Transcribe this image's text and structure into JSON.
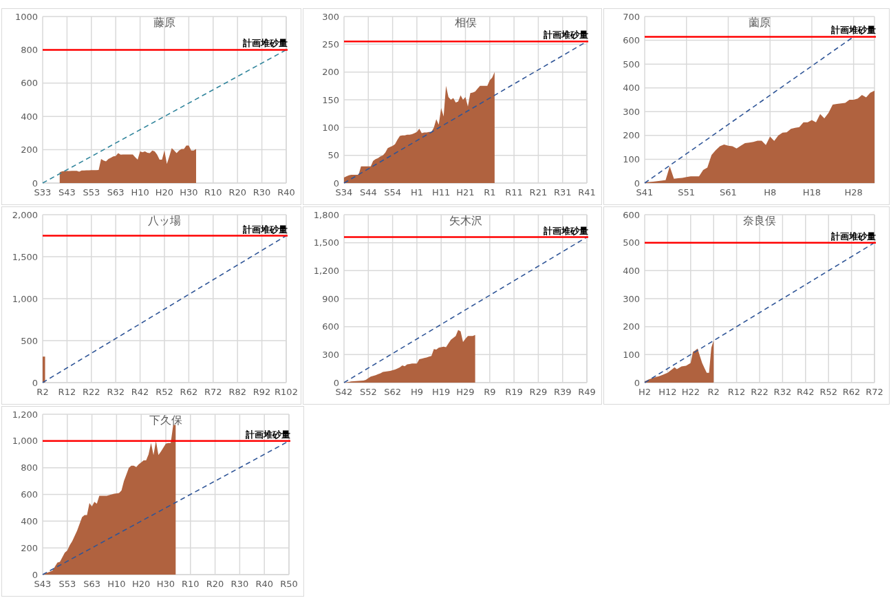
{
  "chart_data": [
    {
      "type": "area",
      "title": "藤原",
      "categories": [
        "S33",
        null,
        null,
        null,
        null,
        null,
        null,
        null,
        null,
        null,
        "S43",
        null,
        null,
        null,
        null,
        null,
        null,
        null,
        null,
        null,
        "S53",
        null,
        null,
        null,
        null,
        null,
        null,
        null,
        null,
        null,
        "S63",
        null,
        null,
        null,
        null,
        null,
        null,
        null,
        null,
        null,
        "H10",
        null,
        null,
        null,
        null,
        null,
        null,
        null,
        null,
        null,
        "H20",
        null,
        null,
        null,
        null,
        null,
        null,
        null,
        null,
        null,
        "H30",
        null,
        null,
        null,
        null,
        null,
        null,
        null,
        null,
        null,
        "R10",
        null,
        null,
        null,
        null,
        null,
        null,
        null,
        null,
        null,
        "R20",
        null,
        null,
        null,
        null,
        null,
        null,
        null,
        null,
        null,
        "R30",
        null,
        null,
        null,
        null,
        null,
        null,
        null,
        null,
        null,
        "R40"
      ],
      "ylim": [
        0,
        1000
      ],
      "yticks": [
        0,
        200,
        400,
        600,
        800,
        1000
      ],
      "grid": true,
      "ref_lines": [
        {
          "axis": "y",
          "value": 800,
          "label": "計画堆砂量",
          "color": "#ff0000"
        }
      ],
      "series": [
        {
          "color": "#b0623f",
          "values": [
            null,
            null,
            null,
            null,
            null,
            null,
            null,
            65,
            70,
            72,
            72,
            72,
            73,
            73,
            73,
            68,
            75,
            75,
            76,
            76,
            77,
            77,
            77,
            78,
            145,
            135,
            130,
            145,
            152,
            160,
            162,
            180,
            170,
            172,
            172,
            172,
            172,
            172,
            155,
            140,
            190,
            185,
            190,
            182,
            180,
            195,
            190,
            170,
            140,
            140,
            195,
            115,
            160,
            210,
            195,
            180,
            195,
            205,
            205,
            225,
            225,
            195,
            195,
            205,
            null,
            null,
            null,
            null,
            null,
            null,
            null,
            null,
            null,
            null,
            null,
            null,
            null,
            null,
            null,
            null,
            null,
            null,
            null,
            null,
            null,
            null,
            null,
            null,
            null,
            null,
            null,
            null,
            null,
            null,
            null,
            null,
            null,
            null,
            null,
            null,
            null
          ]
        },
        {
          "type": "line",
          "line_style": "dashed",
          "color": "#31859c",
          "x": [
            "S33",
            "R40"
          ],
          "values": [
            0,
            800
          ]
        }
      ]
    },
    {
      "type": "area",
      "title": "相俣",
      "categories": [
        "S34",
        null,
        null,
        null,
        null,
        null,
        null,
        null,
        null,
        null,
        "S44",
        null,
        null,
        null,
        null,
        null,
        null,
        null,
        null,
        null,
        "S54",
        null,
        null,
        null,
        null,
        null,
        null,
        null,
        null,
        null,
        "H1",
        null,
        null,
        null,
        null,
        null,
        null,
        null,
        null,
        null,
        "H11",
        null,
        null,
        null,
        null,
        null,
        null,
        null,
        null,
        null,
        "H21",
        null,
        null,
        null,
        null,
        null,
        null,
        null,
        null,
        null,
        "R1",
        null,
        null,
        null,
        null,
        null,
        null,
        null,
        null,
        null,
        "R11",
        null,
        null,
        null,
        null,
        null,
        null,
        null,
        null,
        null,
        "R21",
        null,
        null,
        null,
        null,
        null,
        null,
        null,
        null,
        null,
        "R31",
        null,
        null,
        null,
        null,
        null,
        null,
        null,
        null,
        null,
        "R41"
      ],
      "ylim": [
        0,
        300
      ],
      "yticks": [
        0,
        50,
        100,
        150,
        200,
        250,
        300
      ],
      "grid": true,
      "ref_lines": [
        {
          "axis": "y",
          "value": 255,
          "label": "計画堆砂量",
          "color": "#ff0000"
        }
      ],
      "series": [
        {
          "color": "#b0623f",
          "values": [
            10,
            12,
            14,
            15,
            15,
            15,
            15,
            30,
            30,
            30,
            30,
            30,
            40,
            43,
            45,
            48,
            50,
            55,
            63,
            65,
            67,
            70,
            78,
            85,
            86,
            86,
            87,
            87,
            88,
            90,
            92,
            98,
            90,
            91,
            91,
            92,
            92,
            100,
            115,
            105,
            135,
            120,
            175,
            155,
            150,
            153,
            145,
            147,
            158,
            150,
            155,
            138,
            162,
            163,
            165,
            170,
            175,
            175,
            175,
            175,
            185,
            190,
            200,
            null,
            null,
            null,
            null,
            null,
            null,
            null,
            null,
            null,
            null,
            null,
            null,
            null,
            null,
            null,
            null,
            null,
            null,
            null,
            null,
            null,
            null,
            null,
            null,
            null,
            null,
            null,
            null,
            null,
            null,
            null,
            null,
            null,
            null,
            null,
            null,
            null,
            null
          ]
        },
        {
          "type": "line",
          "line_style": "dashed",
          "color": "#2f5597",
          "x": [
            "S34",
            "R41"
          ],
          "values": [
            0,
            255
          ]
        }
      ]
    },
    {
      "type": "area",
      "title": "薗原",
      "categories": [
        "S41",
        null,
        null,
        null,
        null,
        null,
        null,
        null,
        null,
        null,
        "S51",
        null,
        null,
        null,
        null,
        null,
        null,
        null,
        null,
        null,
        "S61",
        null,
        null,
        null,
        null,
        null,
        null,
        null,
        null,
        null,
        "H8",
        null,
        null,
        null,
        null,
        null,
        null,
        null,
        null,
        null,
        "H18",
        null,
        null,
        null,
        null,
        null,
        null,
        null,
        null,
        null,
        "H28",
        null,
        null,
        null,
        null,
        null
      ],
      "ylim": [
        0,
        700
      ],
      "yticks": [
        0,
        100,
        200,
        300,
        400,
        500,
        600,
        700
      ],
      "grid": true,
      "ref_lines": [
        {
          "axis": "y",
          "value": 615,
          "label": "計画堆砂量",
          "color": "#ff0000"
        }
      ],
      "series": [
        {
          "color": "#b0623f",
          "values": [
            2,
            4,
            6,
            8,
            10,
            12,
            70,
            18,
            20,
            22,
            25,
            28,
            28,
            28,
            55,
            65,
            118,
            138,
            155,
            162,
            157,
            155,
            145,
            157,
            168,
            170,
            173,
            178,
            178,
            160,
            195,
            177,
            200,
            212,
            213,
            228,
            232,
            235,
            255,
            255,
            265,
            255,
            290,
            272,
            295,
            330,
            333,
            335,
            337,
            350,
            350,
            355,
            370,
            360,
            380,
            388
          ]
        },
        {
          "type": "line",
          "line_style": "dashed",
          "color": "#2f5597",
          "x": [
            "S41",
            "H28"
          ],
          "values": [
            0,
            615
          ]
        }
      ]
    },
    {
      "type": "area",
      "title": "八ッ場",
      "categories": [
        "R2",
        null,
        null,
        null,
        null,
        null,
        null,
        null,
        null,
        null,
        "R12",
        null,
        null,
        null,
        null,
        null,
        null,
        null,
        null,
        null,
        "R22",
        null,
        null,
        null,
        null,
        null,
        null,
        null,
        null,
        null,
        "R32",
        null,
        null,
        null,
        null,
        null,
        null,
        null,
        null,
        null,
        "R42",
        null,
        null,
        null,
        null,
        null,
        null,
        null,
        null,
        null,
        "R52",
        null,
        null,
        null,
        null,
        null,
        null,
        null,
        null,
        null,
        "R62",
        null,
        null,
        null,
        null,
        null,
        null,
        null,
        null,
        null,
        "R72",
        null,
        null,
        null,
        null,
        null,
        null,
        null,
        null,
        null,
        "R82",
        null,
        null,
        null,
        null,
        null,
        null,
        null,
        null,
        null,
        "R92",
        null,
        null,
        null,
        null,
        null,
        null,
        null,
        null,
        null,
        "R102"
      ],
      "ylim": [
        0,
        2000
      ],
      "yticks": [
        0,
        500,
        {
          "value": 1000,
          "label": "1,000"
        },
        {
          "value": 1500,
          "label": "1,500"
        },
        {
          "value": 2000,
          "label": "2,000"
        }
      ],
      "grid": true,
      "ref_lines": [
        {
          "axis": "y",
          "value": 1750,
          "label": "計画堆砂量",
          "color": "#ff0000"
        }
      ],
      "series": [
        {
          "color": "#b0623f",
          "values": [
            310,
            310,
            null,
            null,
            null,
            null,
            null,
            null,
            null,
            null,
            null,
            null,
            null,
            null,
            null,
            null,
            null,
            null,
            null,
            null,
            null,
            null,
            null,
            null,
            null,
            null,
            null,
            null,
            null,
            null,
            null,
            null,
            null,
            null,
            null,
            null,
            null,
            null,
            null,
            null,
            null,
            null,
            null,
            null,
            null,
            null,
            null,
            null,
            null,
            null,
            null,
            null,
            null,
            null,
            null,
            null,
            null,
            null,
            null,
            null,
            null,
            null,
            null,
            null,
            null,
            null,
            null,
            null,
            null,
            null,
            null,
            null,
            null,
            null,
            null,
            null,
            null,
            null,
            null,
            null,
            null,
            null,
            null,
            null,
            null,
            null,
            null,
            null,
            null,
            null,
            null,
            null,
            null,
            null,
            null,
            null,
            null,
            null,
            null,
            null,
            null
          ]
        },
        {
          "type": "line",
          "line_style": "dashed",
          "color": "#2f5597",
          "x": [
            "R2",
            "R102"
          ],
          "values": [
            0,
            1750
          ]
        }
      ]
    },
    {
      "type": "area",
      "title": "矢木沢",
      "categories": [
        "S42",
        null,
        null,
        null,
        null,
        null,
        null,
        null,
        null,
        null,
        "S52",
        null,
        null,
        null,
        null,
        null,
        null,
        null,
        null,
        null,
        "S62",
        null,
        null,
        null,
        null,
        null,
        null,
        null,
        null,
        null,
        "H9",
        null,
        null,
        null,
        null,
        null,
        null,
        null,
        null,
        null,
        "H19",
        null,
        null,
        null,
        null,
        null,
        null,
        null,
        null,
        null,
        "H29",
        null,
        null,
        null,
        null,
        null,
        null,
        null,
        null,
        null,
        "R9",
        null,
        null,
        null,
        null,
        null,
        null,
        null,
        null,
        null,
        "R19",
        null,
        null,
        null,
        null,
        null,
        null,
        null,
        null,
        null,
        "R29",
        null,
        null,
        null,
        null,
        null,
        null,
        null,
        null,
        null,
        "R39",
        null,
        null,
        null,
        null,
        null,
        null,
        null,
        null,
        null,
        "R49"
      ],
      "ylim": [
        0,
        1800
      ],
      "yticks": [
        0,
        300,
        600,
        900,
        {
          "value": 1200,
          "label": "1,200"
        },
        {
          "value": 1500,
          "label": "1,500"
        },
        {
          "value": 1800,
          "label": "1,800"
        }
      ],
      "grid": true,
      "ref_lines": [
        {
          "axis": "y",
          "value": 1560,
          "label": "計画堆砂量",
          "color": "#ff0000"
        }
      ],
      "series": [
        {
          "color": "#b0623f",
          "values": [
            0,
            4,
            8,
            12,
            14,
            16,
            18,
            20,
            22,
            30,
            48,
            65,
            72,
            80,
            90,
            100,
            115,
            118,
            122,
            125,
            132,
            140,
            152,
            165,
            185,
            175,
            195,
            200,
            205,
            205,
            205,
            250,
            257,
            263,
            270,
            278,
            285,
            360,
            355,
            375,
            380,
            385,
            380,
            420,
            460,
            480,
            500,
            565,
            550,
            435,
            470,
            500,
            500,
            500,
            510,
            null,
            null,
            null,
            null,
            null,
            null,
            null,
            null,
            null,
            null,
            null,
            null,
            null,
            null,
            null,
            null,
            null,
            null,
            null,
            null,
            null,
            null,
            null,
            null,
            null,
            null,
            null,
            null,
            null,
            null,
            null,
            null,
            null,
            null,
            null,
            null,
            null,
            null,
            null,
            null,
            null,
            null,
            null,
            null,
            null,
            null
          ]
        },
        {
          "type": "line",
          "line_style": "dashed",
          "color": "#2f5597",
          "x": [
            "S42",
            "R49"
          ],
          "values": [
            0,
            1560
          ]
        }
      ]
    },
    {
      "type": "area",
      "title": "奈良俣",
      "categories": [
        "H2",
        null,
        null,
        null,
        null,
        null,
        null,
        null,
        null,
        null,
        "H12",
        null,
        null,
        null,
        null,
        null,
        null,
        null,
        null,
        null,
        "H22",
        null,
        null,
        null,
        null,
        null,
        null,
        null,
        null,
        null,
        "R2",
        null,
        null,
        null,
        null,
        null,
        null,
        null,
        null,
        null,
        "R12",
        null,
        null,
        null,
        null,
        null,
        null,
        null,
        null,
        null,
        "R22",
        null,
        null,
        null,
        null,
        null,
        null,
        null,
        null,
        null,
        "R32",
        null,
        null,
        null,
        null,
        null,
        null,
        null,
        null,
        null,
        "R42",
        null,
        null,
        null,
        null,
        null,
        null,
        null,
        null,
        null,
        "R52",
        null,
        null,
        null,
        null,
        null,
        null,
        null,
        null,
        null,
        "R62",
        null,
        null,
        null,
        null,
        null,
        null,
        null,
        null,
        null,
        "R72"
      ],
      "ylim": [
        0,
        600
      ],
      "yticks": [
        0,
        100,
        200,
        300,
        400,
        500,
        600
      ],
      "grid": true,
      "ref_lines": [
        {
          "axis": "y",
          "value": 500,
          "label": "計画堆砂量",
          "color": "#ff0000"
        }
      ],
      "series": [
        {
          "color": "#b0623f",
          "values": [
            5,
            8,
            12,
            15,
            18,
            20,
            22,
            25,
            28,
            32,
            35,
            42,
            48,
            55,
            48,
            53,
            58,
            59,
            60,
            65,
            70,
            110,
            115,
            122,
            95,
            70,
            52,
            35,
            35,
            125,
            150,
            null,
            null,
            null,
            null,
            null,
            null,
            null,
            null,
            null,
            null,
            null,
            null,
            null,
            null,
            null,
            null,
            null,
            null,
            null,
            null,
            null,
            null,
            null,
            null,
            null,
            null,
            null,
            null,
            null,
            null,
            null,
            null,
            null,
            null,
            null,
            null,
            null,
            null,
            null,
            null,
            null,
            null,
            null,
            null,
            null,
            null,
            null,
            null,
            null,
            null,
            null,
            null,
            null,
            null,
            null,
            null,
            null,
            null,
            null,
            null,
            null,
            null,
            null,
            null,
            null,
            null,
            null,
            null,
            null,
            null
          ]
        },
        {
          "type": "line",
          "line_style": "dashed",
          "color": "#2f5597",
          "x": [
            "H2",
            "R72"
          ],
          "values": [
            0,
            500
          ]
        }
      ]
    },
    {
      "type": "area",
      "title": "下久保",
      "categories": [
        "S43",
        null,
        null,
        null,
        null,
        null,
        null,
        null,
        null,
        null,
        "S53",
        null,
        null,
        null,
        null,
        null,
        null,
        null,
        null,
        null,
        "S63",
        null,
        null,
        null,
        null,
        null,
        null,
        null,
        null,
        null,
        "H10",
        null,
        null,
        null,
        null,
        null,
        null,
        null,
        null,
        null,
        "H20",
        null,
        null,
        null,
        null,
        null,
        null,
        null,
        null,
        null,
        "H30",
        null,
        null,
        null,
        null,
        null,
        null,
        null,
        null,
        null,
        "R10",
        null,
        null,
        null,
        null,
        null,
        null,
        null,
        null,
        null,
        "R20",
        null,
        null,
        null,
        null,
        null,
        null,
        null,
        null,
        null,
        "R30",
        null,
        null,
        null,
        null,
        null,
        null,
        null,
        null,
        null,
        "R40",
        null,
        null,
        null,
        null,
        null,
        null,
        null,
        null,
        null,
        "R50"
      ],
      "ylim": [
        0,
        1200
      ],
      "yticks": [
        0,
        200,
        400,
        600,
        800,
        {
          "value": 1000,
          "label": "1,000"
        },
        {
          "value": 1200,
          "label": "1,200"
        }
      ],
      "grid": true,
      "ref_lines": [
        {
          "axis": "y",
          "value": 1000,
          "label": "計画堆砂量",
          "color": "#ff0000"
        }
      ],
      "series": [
        {
          "color": "#b0623f",
          "values": [
            0,
            8,
            15,
            22,
            30,
            60,
            90,
            95,
            130,
            165,
            180,
            220,
            250,
            290,
            330,
            380,
            430,
            445,
            445,
            535,
            510,
            545,
            530,
            590,
            590,
            590,
            590,
            595,
            600,
            605,
            608,
            610,
            630,
            700,
            750,
            800,
            815,
            815,
            805,
            825,
            840,
            855,
            855,
            900,
            985,
            895,
            1000,
            895,
            920,
            950,
            980,
            985,
            985,
            1120,
            1120,
            null,
            null,
            null,
            null,
            null,
            null,
            null,
            null,
            null,
            null,
            null,
            null,
            null,
            null,
            null,
            null,
            null,
            null,
            null,
            null,
            null,
            null,
            null,
            null,
            null,
            null,
            null,
            null,
            null,
            null,
            null,
            null,
            null,
            null,
            null,
            null,
            null,
            null,
            null,
            null,
            null,
            null,
            null,
            null,
            null,
            null
          ]
        },
        {
          "type": "line",
          "line_style": "dashed",
          "color": "#2f5597",
          "x": [
            "S43",
            "R50"
          ],
          "values": [
            0,
            1000
          ]
        }
      ]
    }
  ]
}
